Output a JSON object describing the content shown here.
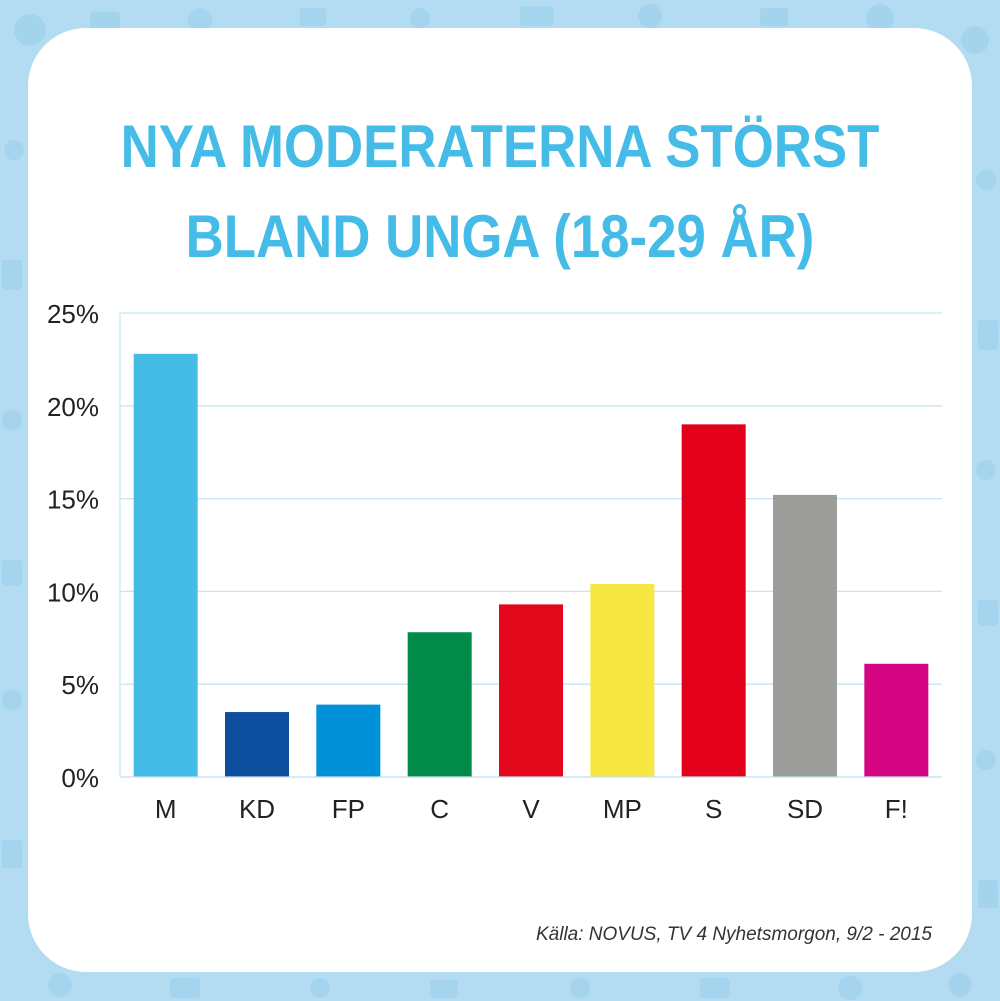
{
  "title_line1": "NYA MODERATERNA STÖRST",
  "title_line2": "BLAND UNGA (18-29 ÅR)",
  "source": "Källa: NOVUS, TV 4 Nyhetsmorgon, 9/2 - 2015",
  "background_color": "#b3dcf2",
  "title_color": "#45bce8",
  "chart_data": {
    "type": "bar",
    "title": "NYA MODERATERNA STÖRST BLAND UNGA (18-29 ÅR)",
    "xlabel": "",
    "ylabel": "",
    "categories": [
      "M",
      "KD",
      "FP",
      "C",
      "V",
      "MP",
      "S",
      "SD",
      "F!"
    ],
    "values": [
      22.8,
      3.5,
      3.9,
      7.8,
      9.3,
      10.4,
      19.0,
      15.2,
      6.1
    ],
    "colors": [
      "#45bce8",
      "#0d4f9e",
      "#0091d9",
      "#008b48",
      "#e2071b",
      "#f7e743",
      "#e2001a",
      "#9d9d9c",
      "#d30583"
    ],
    "ylim": [
      0,
      25
    ],
    "yticks": [
      0,
      5,
      10,
      15,
      20,
      25
    ],
    "ytick_labels": [
      "0%",
      "5%",
      "10%",
      "15%",
      "20%",
      "25%"
    ],
    "grid": true,
    "legend": "none"
  }
}
